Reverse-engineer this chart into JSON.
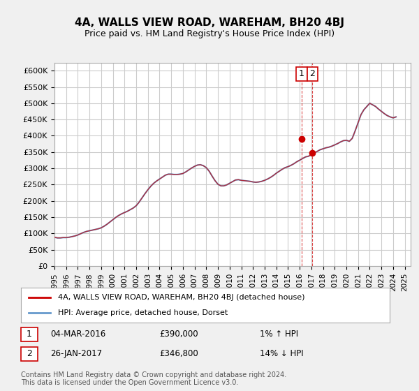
{
  "title": "4A, WALLS VIEW ROAD, WAREHAM, BH20 4BJ",
  "subtitle": "Price paid vs. HM Land Registry's House Price Index (HPI)",
  "ylabel": "",
  "ylim": [
    0,
    625000
  ],
  "yticks": [
    0,
    50000,
    100000,
    150000,
    200000,
    250000,
    300000,
    350000,
    400000,
    450000,
    500000,
    550000,
    600000
  ],
  "ytick_labels": [
    "£0",
    "£50K",
    "£100K",
    "£150K",
    "£200K",
    "£250K",
    "£300K",
    "£350K",
    "£400K",
    "£450K",
    "£500K",
    "£550K",
    "£600K"
  ],
  "legend_line1": "4A, WALLS VIEW ROAD, WAREHAM, BH20 4BJ (detached house)",
  "legend_line2": "HPI: Average price, detached house, Dorset",
  "line1_color": "#cc0000",
  "line2_color": "#6699cc",
  "annotation1_label": "1",
  "annotation1_date": "04-MAR-2016",
  "annotation1_price": "£390,000",
  "annotation1_hpi": "1% ↑ HPI",
  "annotation2_label": "2",
  "annotation2_date": "26-JAN-2017",
  "annotation2_price": "£346,800",
  "annotation2_hpi": "14% ↓ HPI",
  "footnote": "Contains HM Land Registry data © Crown copyright and database right 2024.\nThis data is licensed under the Open Government Licence v3.0.",
  "background_color": "#f0f0f0",
  "plot_background": "#ffffff",
  "grid_color": "#cccccc",
  "hpi_x": [
    1995.0,
    1995.25,
    1995.5,
    1995.75,
    1996.0,
    1996.25,
    1996.5,
    1996.75,
    1997.0,
    1997.25,
    1997.5,
    1997.75,
    1998.0,
    1998.25,
    1998.5,
    1998.75,
    1999.0,
    1999.25,
    1999.5,
    1999.75,
    2000.0,
    2000.25,
    2000.5,
    2000.75,
    2001.0,
    2001.25,
    2001.5,
    2001.75,
    2002.0,
    2002.25,
    2002.5,
    2002.75,
    2003.0,
    2003.25,
    2003.5,
    2003.75,
    2004.0,
    2004.25,
    2004.5,
    2004.75,
    2005.0,
    2005.25,
    2005.5,
    2005.75,
    2006.0,
    2006.25,
    2006.5,
    2006.75,
    2007.0,
    2007.25,
    2007.5,
    2007.75,
    2008.0,
    2008.25,
    2008.5,
    2008.75,
    2009.0,
    2009.25,
    2009.5,
    2009.75,
    2010.0,
    2010.25,
    2010.5,
    2010.75,
    2011.0,
    2011.25,
    2011.5,
    2011.75,
    2012.0,
    2012.25,
    2012.5,
    2012.75,
    2013.0,
    2013.25,
    2013.5,
    2013.75,
    2014.0,
    2014.25,
    2014.5,
    2014.75,
    2015.0,
    2015.25,
    2015.5,
    2015.75,
    2016.0,
    2016.25,
    2016.5,
    2016.75,
    2017.0,
    2017.25,
    2017.5,
    2017.75,
    2018.0,
    2018.25,
    2018.5,
    2018.75,
    2019.0,
    2019.25,
    2019.5,
    2019.75,
    2020.0,
    2020.25,
    2020.5,
    2020.75,
    2021.0,
    2021.25,
    2021.5,
    2021.75,
    2022.0,
    2022.25,
    2022.5,
    2022.75,
    2023.0,
    2023.25,
    2023.5,
    2023.75,
    2024.0,
    2024.25
  ],
  "hpi_y": [
    88000,
    86000,
    86000,
    87000,
    87000,
    88000,
    90000,
    92000,
    95000,
    99000,
    103000,
    106000,
    108000,
    110000,
    112000,
    114000,
    117000,
    122000,
    128000,
    135000,
    142000,
    149000,
    155000,
    160000,
    164000,
    168000,
    173000,
    178000,
    185000,
    196000,
    209000,
    222000,
    234000,
    245000,
    254000,
    261000,
    267000,
    273000,
    279000,
    282000,
    282000,
    281000,
    281000,
    282000,
    284000,
    289000,
    295000,
    301000,
    306000,
    310000,
    311000,
    308000,
    302000,
    291000,
    276000,
    262000,
    251000,
    246000,
    246000,
    249000,
    254000,
    259000,
    264000,
    265000,
    263000,
    262000,
    261000,
    260000,
    258000,
    257000,
    258000,
    260000,
    263000,
    267000,
    272000,
    278000,
    285000,
    291000,
    297000,
    302000,
    305000,
    309000,
    314000,
    320000,
    325000,
    330000,
    335000,
    337000,
    342000,
    347000,
    352000,
    357000,
    360000,
    363000,
    365000,
    368000,
    372000,
    376000,
    381000,
    385000,
    386000,
    383000,
    392000,
    415000,
    440000,
    465000,
    480000,
    490000,
    500000,
    495000,
    490000,
    482000,
    475000,
    468000,
    462000,
    458000,
    455000,
    458000
  ],
  "sale1_x": 2016.17,
  "sale1_y": 390000,
  "sale2_x": 2017.08,
  "sale2_y": 346800,
  "xtick_years": [
    1995,
    1996,
    1997,
    1998,
    1999,
    2000,
    2001,
    2002,
    2003,
    2004,
    2005,
    2006,
    2007,
    2008,
    2009,
    2010,
    2011,
    2012,
    2013,
    2014,
    2015,
    2016,
    2017,
    2018,
    2019,
    2020,
    2021,
    2022,
    2023,
    2024,
    2025
  ]
}
